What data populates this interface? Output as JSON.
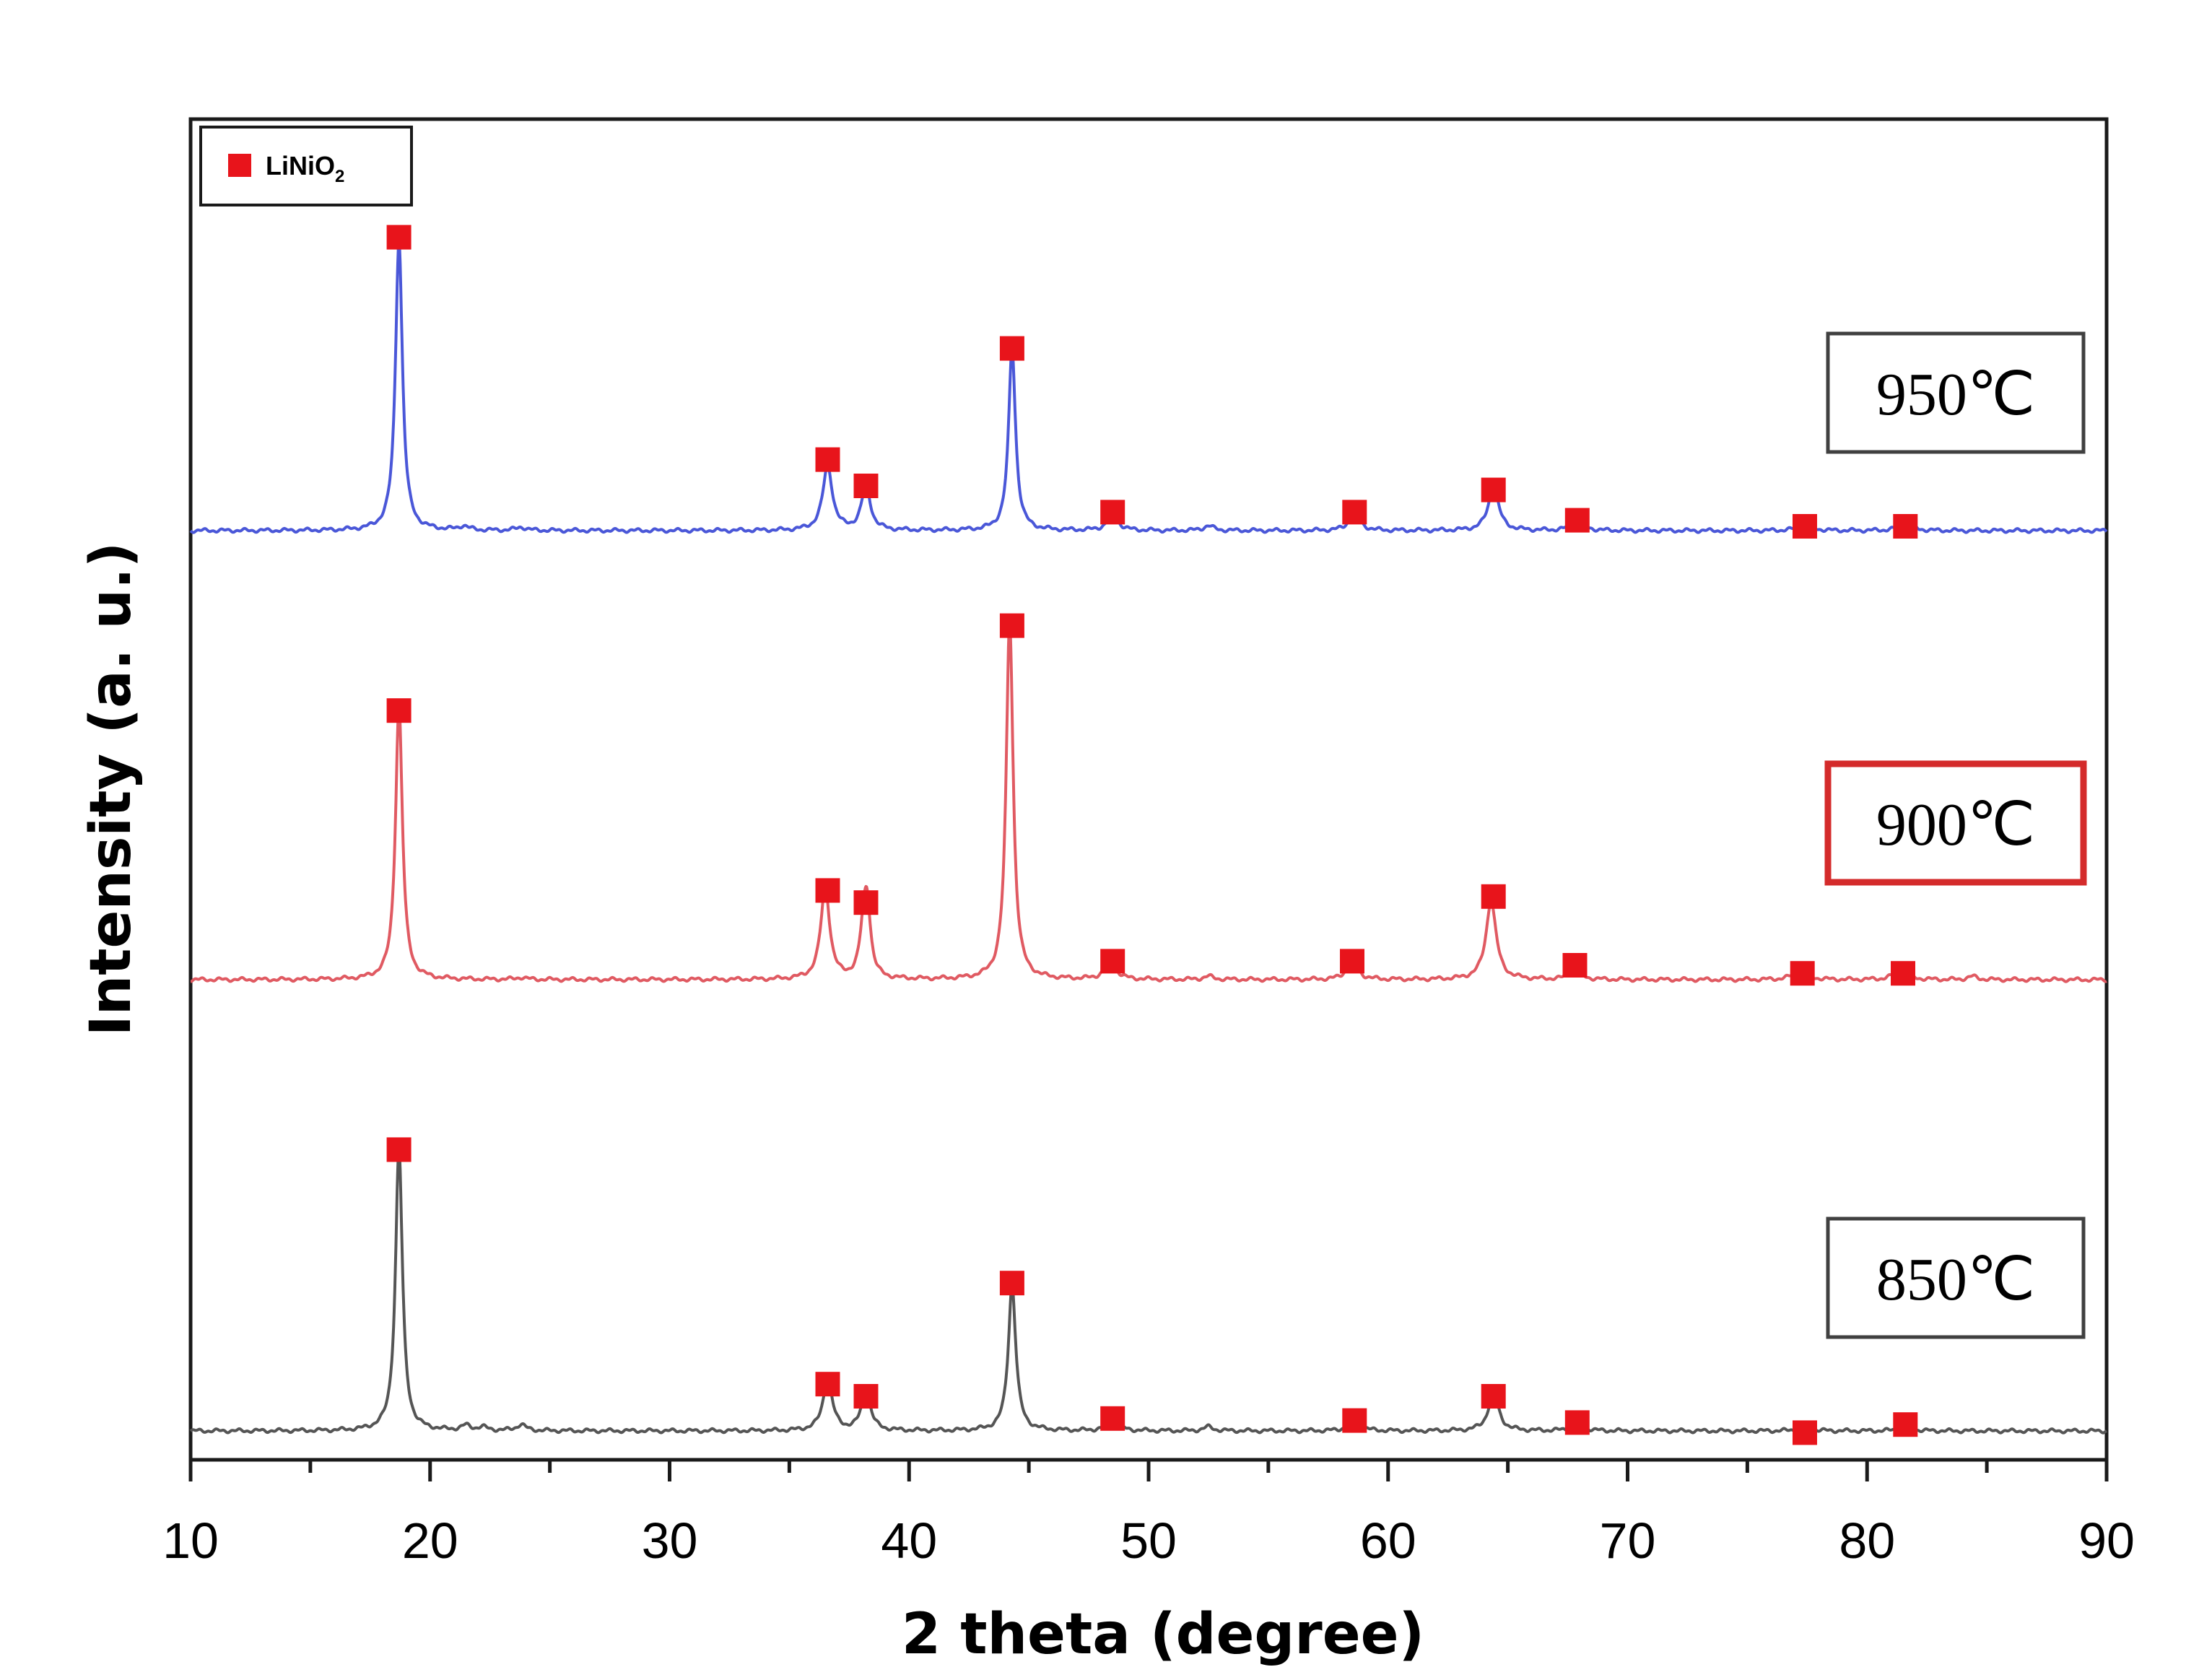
{
  "chart_data": {
    "type": "line",
    "xlabel": "2 theta (degree)",
    "ylabel": "Intensity (a. u.)",
    "xlim": [
      10,
      90
    ],
    "xticks": [
      "10",
      "20",
      "30",
      "40",
      "50",
      "60",
      "70",
      "80",
      "90"
    ],
    "legend": {
      "marker_color": "#e8141b",
      "label": "LiNiO",
      "sub": "2",
      "placement": "top-left"
    },
    "series": [
      {
        "name": "950℃",
        "color": "#4a57d8",
        "box_color": "#404040",
        "baseline": 1.0,
        "peaks": [
          {
            "x": 18.7,
            "h": 7.2,
            "w": 0.22
          },
          {
            "x": 21.4,
            "h": 0.1,
            "w": 0.3
          },
          {
            "x": 23.8,
            "h": 0.08,
            "w": 0.3
          },
          {
            "x": 36.6,
            "h": 1.6,
            "w": 0.3
          },
          {
            "x": 38.2,
            "h": 1.1,
            "w": 0.28
          },
          {
            "x": 44.3,
            "h": 4.5,
            "w": 0.22
          },
          {
            "x": 48.5,
            "h": 0.45,
            "w": 0.3
          },
          {
            "x": 52.5,
            "h": 0.12,
            "w": 0.3
          },
          {
            "x": 58.6,
            "h": 0.5,
            "w": 0.3
          },
          {
            "x": 64.4,
            "h": 1.1,
            "w": 0.32
          },
          {
            "x": 67.9,
            "h": 0.35,
            "w": 0.3
          },
          {
            "x": 77.4,
            "h": 0.2,
            "w": 0.35
          },
          {
            "x": 81.6,
            "h": 0.22,
            "w": 0.35
          }
        ],
        "markers": [
          {
            "x": 18.7,
            "y": 7.9
          },
          {
            "x": 36.6,
            "y": 2.4
          },
          {
            "x": 38.2,
            "y": 1.75
          },
          {
            "x": 44.3,
            "y": 5.15
          },
          {
            "x": 48.5,
            "y": 1.1
          },
          {
            "x": 58.6,
            "y": 1.1
          },
          {
            "x": 64.4,
            "y": 1.65
          },
          {
            "x": 67.9,
            "y": 0.9
          },
          {
            "x": 77.4,
            "y": 0.75
          },
          {
            "x": 81.6,
            "y": 0.75
          }
        ]
      },
      {
        "name": "900℃",
        "color": "#e05a62",
        "box_color": "#d42b2b",
        "baseline": 1.0,
        "peaks": [
          {
            "x": 18.7,
            "h": 6.8,
            "w": 0.22
          },
          {
            "x": 23.8,
            "h": 0.05,
            "w": 0.3
          },
          {
            "x": 36.5,
            "h": 2.3,
            "w": 0.28
          },
          {
            "x": 38.1,
            "h": 1.0,
            "w": 0.24
          },
          {
            "x": 38.25,
            "h": 1.6,
            "w": 0.22
          },
          {
            "x": 44.2,
            "h": 8.9,
            "w": 0.22
          },
          {
            "x": 48.4,
            "h": 0.55,
            "w": 0.3
          },
          {
            "x": 52.5,
            "h": 0.08,
            "w": 0.3
          },
          {
            "x": 58.5,
            "h": 0.55,
            "w": 0.3
          },
          {
            "x": 64.3,
            "h": 1.95,
            "w": 0.32
          },
          {
            "x": 67.8,
            "h": 0.3,
            "w": 0.3
          },
          {
            "x": 77.2,
            "h": 0.3,
            "w": 0.35
          },
          {
            "x": 81.4,
            "h": 0.3,
            "w": 0.35
          },
          {
            "x": 84.4,
            "h": 0.08,
            "w": 0.3
          }
        ],
        "markers": [
          {
            "x": 18.7,
            "y": 7.3
          },
          {
            "x": 36.6,
            "y": 2.85
          },
          {
            "x": 38.2,
            "y": 2.55
          },
          {
            "x": 44.3,
            "y": 9.4
          },
          {
            "x": 48.5,
            "y": 1.1
          },
          {
            "x": 58.5,
            "y": 1.1
          },
          {
            "x": 64.4,
            "y": 2.7
          },
          {
            "x": 67.8,
            "y": 1.0
          },
          {
            "x": 77.3,
            "y": 0.8
          },
          {
            "x": 81.5,
            "y": 0.8
          }
        ]
      },
      {
        "name": "850℃",
        "color": "#555555",
        "box_color": "#404040",
        "baseline": 1.0,
        "peaks": [
          {
            "x": 18.7,
            "h": 7.0,
            "w": 0.22
          },
          {
            "x": 21.5,
            "h": 0.12,
            "w": 0.3
          },
          {
            "x": 22.2,
            "h": 0.08,
            "w": 0.3
          },
          {
            "x": 23.8,
            "h": 0.15,
            "w": 0.3
          },
          {
            "x": 36.6,
            "h": 1.25,
            "w": 0.3
          },
          {
            "x": 38.2,
            "h": 1.0,
            "w": 0.28
          },
          {
            "x": 44.3,
            "h": 3.6,
            "w": 0.24
          },
          {
            "x": 48.5,
            "h": 0.35,
            "w": 0.3
          },
          {
            "x": 52.5,
            "h": 0.1,
            "w": 0.3
          },
          {
            "x": 58.6,
            "h": 0.35,
            "w": 0.3
          },
          {
            "x": 64.4,
            "h": 0.95,
            "w": 0.32
          },
          {
            "x": 67.9,
            "h": 0.25,
            "w": 0.3
          },
          {
            "x": 77.4,
            "h": 0.12,
            "w": 0.35
          },
          {
            "x": 81.6,
            "h": 0.12,
            "w": 0.35
          }
        ],
        "markers": [
          {
            "x": 18.7,
            "y": 7.6
          },
          {
            "x": 36.6,
            "y": 1.8
          },
          {
            "x": 38.2,
            "y": 1.5
          },
          {
            "x": 44.3,
            "y": 4.3
          },
          {
            "x": 48.5,
            "y": 0.95
          },
          {
            "x": 58.6,
            "y": 0.9
          },
          {
            "x": 64.4,
            "y": 1.5
          },
          {
            "x": 67.9,
            "y": 0.85
          },
          {
            "x": 77.4,
            "y": 0.6
          },
          {
            "x": 81.6,
            "y": 0.8
          }
        ]
      }
    ]
  }
}
